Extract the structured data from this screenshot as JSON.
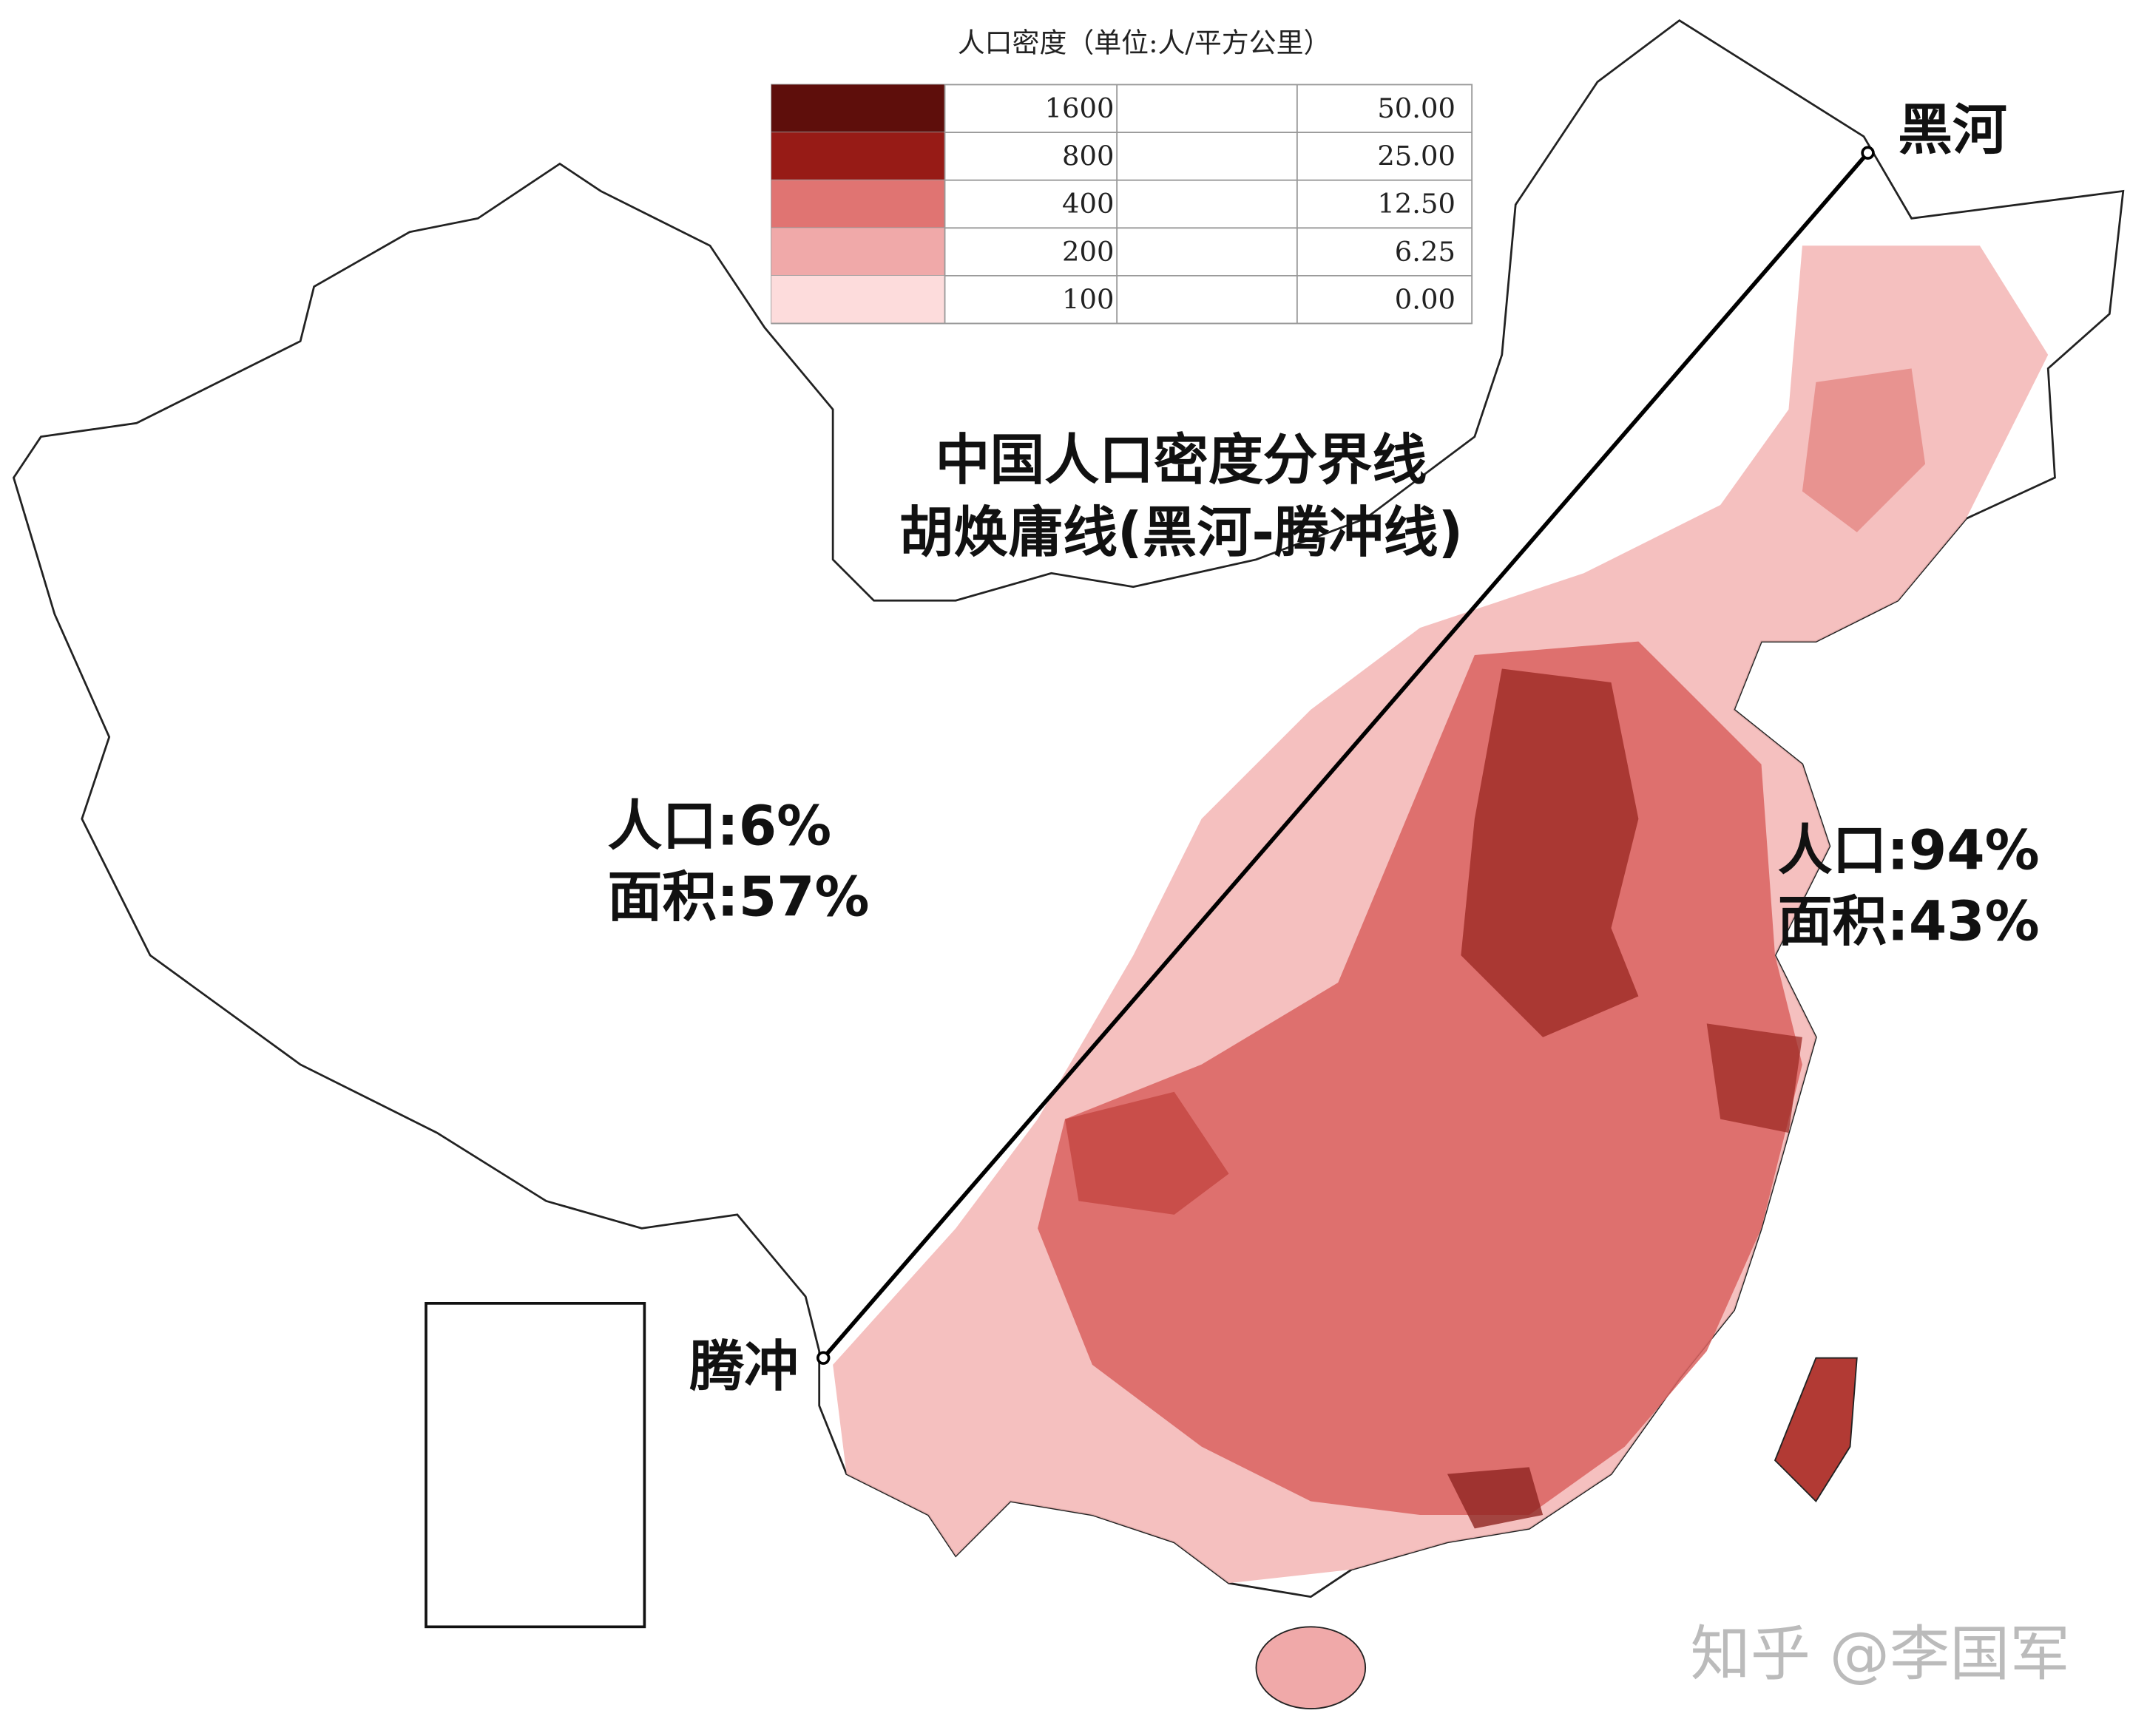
{
  "legend": {
    "title": "人口密度（单位:人/平方公里）",
    "rows": [
      {
        "color": "#5e0e0b",
        "value": "1600",
        "share": "50.00"
      },
      {
        "color": "#971b16",
        "value": "800",
        "share": "25.00"
      },
      {
        "color": "#e07472",
        "value": "400",
        "share": "12.50"
      },
      {
        "color": "#f0a9a9",
        "value": "200",
        "share": "6.25"
      },
      {
        "color": "#fddcdc",
        "value": "100",
        "share": "0.00"
      }
    ]
  },
  "labels": {
    "north_end": "黑河",
    "south_end": "腾冲",
    "title_line1": "中国人口密度分界线",
    "title_line2": "胡焕庸线(黑河-腾冲线)",
    "west_population": "人口:6%",
    "west_area": "面积:57%",
    "east_population": "人口:94%",
    "east_area": "面积:43%"
  },
  "watermark": "知乎 @李国军"
}
